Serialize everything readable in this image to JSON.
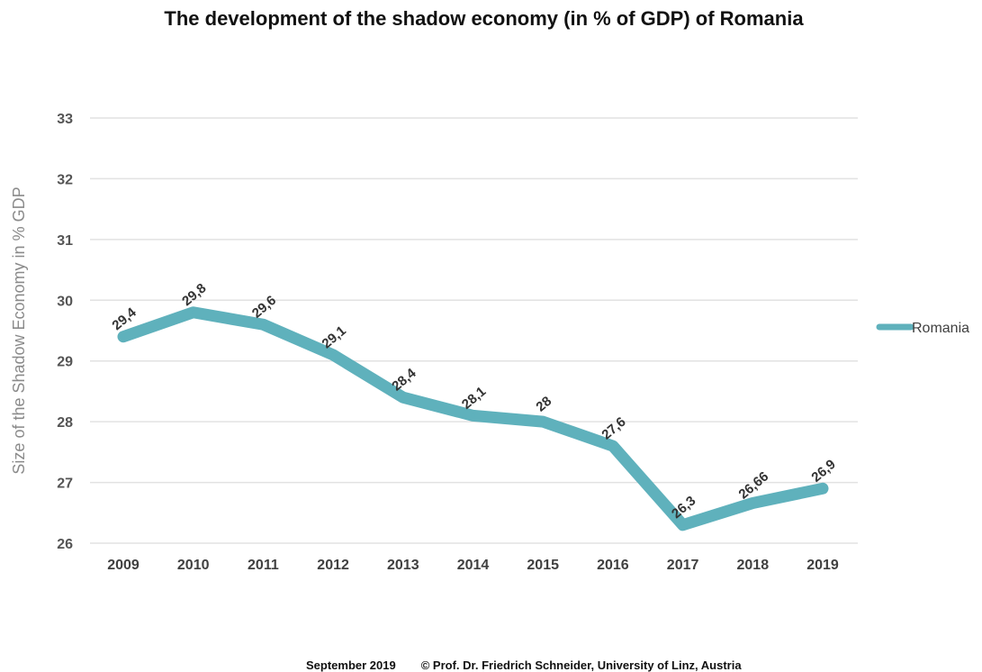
{
  "chart_data": {
    "type": "line",
    "title": "The development of the shadow economy (in % of GDP) of Romania",
    "xlabel": "",
    "ylabel": "Size of the Shadow Economy in % GDP",
    "categories": [
      "2009",
      "2010",
      "2011",
      "2012",
      "2013",
      "2014",
      "2015",
      "2016",
      "2017",
      "2018",
      "2019"
    ],
    "series": [
      {
        "name": "Romania",
        "values": [
          29.4,
          29.8,
          29.6,
          29.1,
          28.4,
          28.1,
          28,
          27.6,
          26.3,
          26.66,
          26.9
        ],
        "data_labels": [
          "29,4",
          "29,8",
          "29,6",
          "29,1",
          "28,4",
          "28,1",
          "28",
          "27,6",
          "26,3",
          "26,66",
          "26,9"
        ],
        "color": "#5fb1bc"
      }
    ],
    "ylim": [
      26,
      33
    ],
    "yticks": [
      "26",
      "27",
      "28",
      "29",
      "30",
      "31",
      "32",
      "33"
    ],
    "grid": true,
    "legend": "right"
  },
  "footer": {
    "date": "September 2019",
    "credit": "© Prof. Dr. Friedrich Schneider, University of Linz, Austria"
  }
}
